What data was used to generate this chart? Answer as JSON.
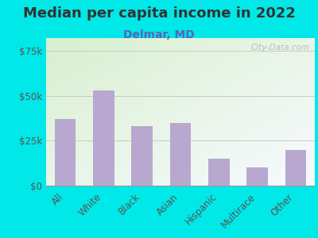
{
  "title": "Median per capita income in 2022",
  "subtitle": "Delmar, MD",
  "categories": [
    "All",
    "White",
    "Black",
    "Asian",
    "Hispanic",
    "Multirace",
    "Other"
  ],
  "values": [
    37000,
    53000,
    33000,
    35000,
    15000,
    10000,
    20000
  ],
  "bar_color": "#b8a8d0",
  "background_outer": "#00e8e8",
  "background_inner_topleft": "#d8f0d0",
  "background_inner_bottomright": "#f8faff",
  "title_color": "#333333",
  "subtitle_color": "#5566bb",
  "tick_label_color": "#555555",
  "axis_label_color": "#555555",
  "yticks": [
    0,
    25000,
    50000,
    75000
  ],
  "ytick_labels": [
    "$0",
    "$25k",
    "$50k",
    "$75k"
  ],
  "ylim": [
    0,
    82000
  ],
  "watermark": "City-Data.com",
  "title_fontsize": 13,
  "subtitle_fontsize": 10,
  "tick_fontsize": 8.5
}
